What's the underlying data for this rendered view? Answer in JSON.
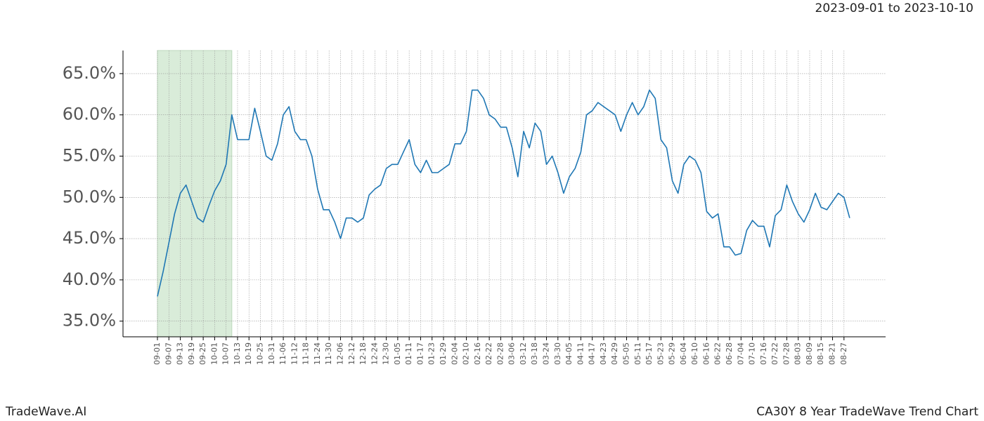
{
  "brand": "TradeWave.AI",
  "chart_data": {
    "type": "line",
    "title": "CA30Y 8 Year TradeWave Trend Chart",
    "subtitle": "2023-09-01 to 2023-10-10",
    "highlight": {
      "start": "2023-09-01",
      "end": "2023-10-10",
      "color": "#d9ecd9"
    },
    "categories": [
      "09-01",
      null,
      "09-07",
      null,
      "09-13",
      null,
      "09-19",
      null,
      "09-25",
      null,
      "10-01",
      null,
      "10-07",
      null,
      "10-13",
      null,
      "10-19",
      null,
      "10-25",
      null,
      "10-31",
      null,
      "11-06",
      null,
      "11-12",
      null,
      "11-18",
      null,
      "11-24",
      null,
      "11-30",
      null,
      "12-06",
      null,
      "12-12",
      null,
      "12-18",
      null,
      "12-24",
      null,
      "12-30",
      null,
      "01-05",
      null,
      "01-11",
      null,
      "01-17",
      null,
      "01-23",
      null,
      "01-29",
      null,
      "02-04",
      null,
      "02-10",
      null,
      "02-16",
      null,
      "02-22",
      null,
      "02-28",
      null,
      "03-06",
      null,
      "03-12",
      null,
      "03-18",
      null,
      "03-24",
      null,
      "03-30",
      null,
      "04-05",
      null,
      "04-11",
      null,
      "04-17",
      null,
      "04-23",
      null,
      "04-29",
      null,
      "05-05",
      null,
      "05-11",
      null,
      "05-17",
      null,
      "05-23",
      null,
      "05-29",
      null,
      "06-04",
      null,
      "06-10",
      null,
      "06-16",
      null,
      "06-22",
      null,
      "06-28",
      null,
      "07-04",
      null,
      "07-10",
      null,
      "07-16",
      null,
      "07-22",
      null,
      "07-28",
      null,
      "08-03",
      null,
      "08-09",
      null,
      "08-15",
      null,
      "08-21",
      null,
      "08-27",
      null
    ],
    "series": [
      {
        "color": "#1f77b4",
        "values": [
          38,
          41,
          44.5,
          48,
          50.5,
          51.5,
          49.5,
          47.5,
          47,
          49,
          50.8,
          52,
          54,
          60,
          57,
          57,
          57,
          60.8,
          58,
          55,
          54.5,
          56.5,
          60,
          61,
          58,
          57,
          57,
          55,
          51,
          48.5,
          48.5,
          47,
          45,
          47.5,
          47.5,
          47,
          47.5,
          50.3,
          51,
          51.5,
          53.5,
          54,
          54,
          55.5,
          57,
          54,
          53,
          54.5,
          53,
          53,
          53.5,
          54,
          56.5,
          56.5,
          58,
          63,
          63,
          62,
          60,
          59.5,
          58.5,
          58.5,
          56,
          52.5,
          58,
          56,
          59,
          58,
          54,
          55,
          53,
          50.5,
          52.5,
          53.5,
          55.5,
          60,
          60.5,
          61.5,
          61,
          60.5,
          60,
          58,
          60,
          61.5,
          60,
          61,
          63,
          62,
          57,
          56,
          52,
          50.5,
          54,
          55,
          54.5,
          53,
          48.3,
          47.5,
          48,
          44,
          44,
          43,
          43.2,
          46,
          47.2,
          46.5,
          46.5,
          44,
          47.8,
          48.5,
          51.5,
          49.5,
          48,
          47,
          48.5,
          50.5,
          48.8,
          48.5,
          49.5,
          50.5,
          50,
          47.5
        ]
      }
    ],
    "ylim": [
      33.1,
      67.8
    ],
    "yticks": [
      {
        "value": 35,
        "label": "35.0%"
      },
      {
        "value": 40,
        "label": "40.0%"
      },
      {
        "value": 45,
        "label": "45.0%"
      },
      {
        "value": 50,
        "label": "50.0%"
      },
      {
        "value": 55,
        "label": "55.0%"
      },
      {
        "value": 60,
        "label": "60.0%"
      },
      {
        "value": 65,
        "label": "65.0%"
      }
    ],
    "grid": true
  }
}
